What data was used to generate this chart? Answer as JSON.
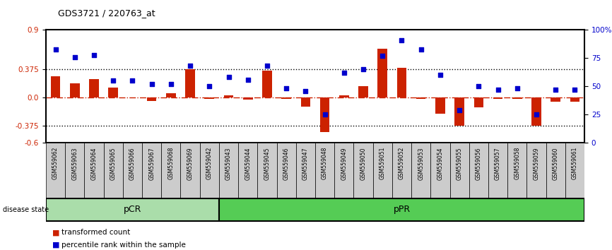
{
  "title": "GDS3721 / 220763_at",
  "samples": [
    "GSM559062",
    "GSM559063",
    "GSM559064",
    "GSM559065",
    "GSM559066",
    "GSM559067",
    "GSM559068",
    "GSM559069",
    "GSM559042",
    "GSM559043",
    "GSM559044",
    "GSM559045",
    "GSM559046",
    "GSM559047",
    "GSM559048",
    "GSM559049",
    "GSM559050",
    "GSM559051",
    "GSM559052",
    "GSM559053",
    "GSM559054",
    "GSM559055",
    "GSM559056",
    "GSM559057",
    "GSM559058",
    "GSM559059",
    "GSM559060",
    "GSM559061"
  ],
  "transformed_count": [
    0.28,
    0.19,
    0.25,
    0.13,
    0.0,
    -0.05,
    0.06,
    0.38,
    -0.02,
    0.03,
    -0.03,
    0.36,
    -0.02,
    -0.12,
    -0.46,
    0.03,
    0.15,
    0.65,
    0.4,
    -0.02,
    -0.22,
    -0.38,
    -0.13,
    -0.02,
    -0.02,
    -0.38,
    -0.06,
    -0.06
  ],
  "percentile_rank": [
    83,
    76,
    78,
    55,
    55,
    52,
    52,
    68,
    50,
    58,
    56,
    68,
    48,
    46,
    25,
    62,
    65,
    77,
    91,
    83,
    60,
    29,
    50,
    47,
    48,
    25,
    47,
    47
  ],
  "pCR_count": 9,
  "pPR_count": 19,
  "ylim": [
    -0.6,
    0.9
  ],
  "yticks_left": [
    -0.6,
    -0.375,
    0.0,
    0.375,
    0.9
  ],
  "yticks_right": [
    0,
    25,
    50,
    75,
    100
  ],
  "bar_color": "#cc2200",
  "dot_color": "#0000cc",
  "hline_color": "#cc2200",
  "pCR_color": "#aaddaa",
  "pPR_color": "#55cc55",
  "grid_color": "black",
  "bg_color": "#cccccc",
  "legend_red": "transformed count",
  "legend_blue": "percentile rank within the sample",
  "label_disease": "disease state"
}
